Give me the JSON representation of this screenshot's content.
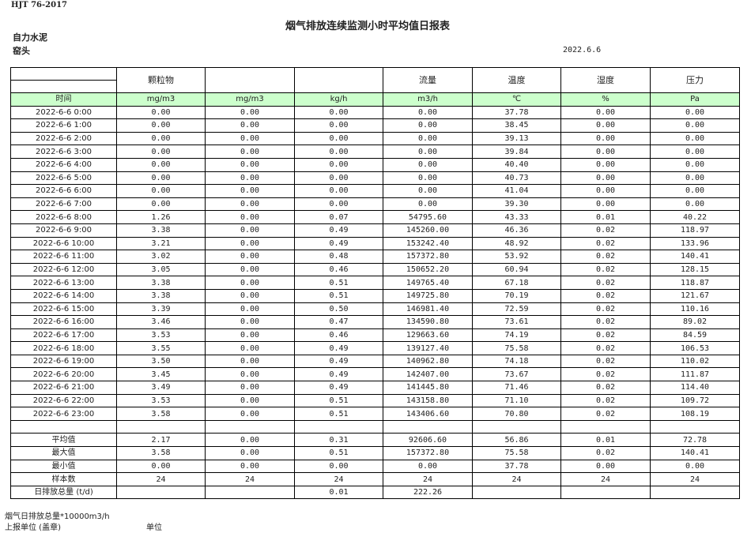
{
  "standard": "HJT  76-2017",
  "title": "烟气排放连续监测小时平均值日报表",
  "company": "自力水泥",
  "site": "窑头",
  "date": "2022.6.6",
  "columns": [
    "颗粒物",
    "",
    "",
    "流量",
    "温度",
    "湿度",
    "压力"
  ],
  "units": [
    "时间",
    "mg/m3",
    "mg/m3",
    "kg/h",
    "m3/h",
    "℃",
    "%",
    "Pa"
  ],
  "rows": [
    [
      "2022-6-6 0:00",
      "0.00",
      "0.00",
      "0.00",
      "0.00",
      "37.78",
      "0.00",
      "0.00"
    ],
    [
      "2022-6-6 1:00",
      "0.00",
      "0.00",
      "0.00",
      "0.00",
      "38.45",
      "0.00",
      "0.00"
    ],
    [
      "2022-6-6 2:00",
      "0.00",
      "0.00",
      "0.00",
      "0.00",
      "39.13",
      "0.00",
      "0.00"
    ],
    [
      "2022-6-6 3:00",
      "0.00",
      "0.00",
      "0.00",
      "0.00",
      "39.84",
      "0.00",
      "0.00"
    ],
    [
      "2022-6-6 4:00",
      "0.00",
      "0.00",
      "0.00",
      "0.00",
      "40.40",
      "0.00",
      "0.00"
    ],
    [
      "2022-6-6 5:00",
      "0.00",
      "0.00",
      "0.00",
      "0.00",
      "40.73",
      "0.00",
      "0.00"
    ],
    [
      "2022-6-6 6:00",
      "0.00",
      "0.00",
      "0.00",
      "0.00",
      "41.04",
      "0.00",
      "0.00"
    ],
    [
      "2022-6-6 7:00",
      "0.00",
      "0.00",
      "0.00",
      "0.00",
      "39.30",
      "0.00",
      "0.00"
    ],
    [
      "2022-6-6 8:00",
      "1.26",
      "0.00",
      "0.07",
      "54795.60",
      "43.33",
      "0.01",
      "40.22"
    ],
    [
      "2022-6-6 9:00",
      "3.38",
      "0.00",
      "0.49",
      "145260.00",
      "46.36",
      "0.02",
      "118.97"
    ],
    [
      "2022-6-6 10:00",
      "3.21",
      "0.00",
      "0.49",
      "153242.40",
      "48.92",
      "0.02",
      "133.96"
    ],
    [
      "2022-6-6 11:00",
      "3.02",
      "0.00",
      "0.48",
      "157372.80",
      "53.92",
      "0.02",
      "140.41"
    ],
    [
      "2022-6-6 12:00",
      "3.05",
      "0.00",
      "0.46",
      "150652.20",
      "60.94",
      "0.02",
      "128.15"
    ],
    [
      "2022-6-6 13:00",
      "3.38",
      "0.00",
      "0.51",
      "149765.40",
      "67.18",
      "0.02",
      "118.87"
    ],
    [
      "2022-6-6 14:00",
      "3.38",
      "0.00",
      "0.51",
      "149725.80",
      "70.19",
      "0.02",
      "121.67"
    ],
    [
      "2022-6-6 15:00",
      "3.39",
      "0.00",
      "0.50",
      "146981.40",
      "72.59",
      "0.02",
      "110.16"
    ],
    [
      "2022-6-6 16:00",
      "3.46",
      "0.00",
      "0.47",
      "134590.80",
      "73.61",
      "0.02",
      "89.02"
    ],
    [
      "2022-6-6 17:00",
      "3.53",
      "0.00",
      "0.46",
      "129663.60",
      "74.19",
      "0.02",
      "84.59"
    ],
    [
      "2022-6-6 18:00",
      "3.55",
      "0.00",
      "0.49",
      "139127.40",
      "75.58",
      "0.02",
      "106.53"
    ],
    [
      "2022-6-6 19:00",
      "3.50",
      "0.00",
      "0.49",
      "140962.80",
      "74.18",
      "0.02",
      "110.02"
    ],
    [
      "2022-6-6 20:00",
      "3.45",
      "0.00",
      "0.49",
      "142407.00",
      "73.67",
      "0.02",
      "111.87"
    ],
    [
      "2022-6-6 21:00",
      "3.49",
      "0.00",
      "0.49",
      "141445.80",
      "71.46",
      "0.02",
      "114.40"
    ],
    [
      "2022-6-6 22:00",
      "3.53",
      "0.00",
      "0.51",
      "143158.80",
      "71.10",
      "0.02",
      "109.72"
    ],
    [
      "2022-6-6 23:00",
      "3.58",
      "0.00",
      "0.51",
      "143406.60",
      "70.80",
      "0.02",
      "108.19"
    ]
  ],
  "stats": [
    [
      "平均值",
      "2.17",
      "0.00",
      "0.31",
      "92606.60",
      "56.86",
      "0.01",
      "72.78"
    ],
    [
      "最大值",
      "3.58",
      "0.00",
      "0.51",
      "157372.80",
      "75.58",
      "0.02",
      "140.41"
    ],
    [
      "最小值",
      "0.00",
      "0.00",
      "0.00",
      "0.00",
      "37.78",
      "0.00",
      "0.00"
    ],
    [
      "样本数",
      "24",
      "24",
      "24",
      "24",
      "24",
      "24",
      "24"
    ],
    [
      "日排放总量 (t/d)",
      "",
      "",
      "0.01",
      "222.26",
      "",
      "",
      ""
    ]
  ],
  "footer": {
    "note": "烟气日排放总量*10000m3/h",
    "reporter": "上报单位 (盖章)",
    "unit": "单位"
  }
}
